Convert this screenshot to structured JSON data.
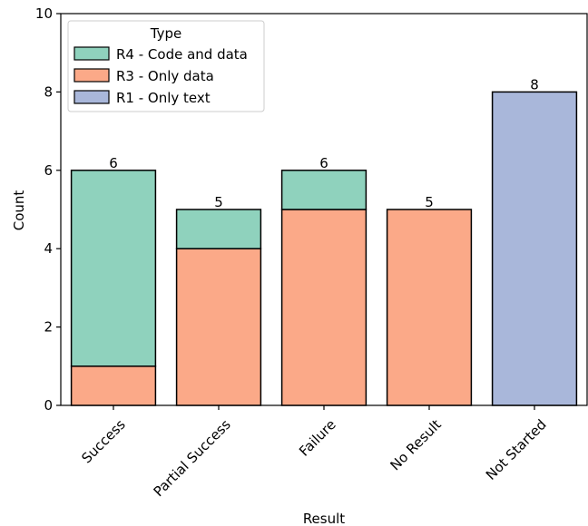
{
  "chart_data": {
    "type": "bar",
    "stacked": true,
    "categories": [
      "Success",
      "Partial Success",
      "Failure",
      "No Result",
      "Not Started"
    ],
    "series": [
      {
        "name": "R1 - Only text",
        "values": [
          0,
          0,
          0,
          0,
          8
        ],
        "color": "#a9b7da"
      },
      {
        "name": "R3 - Only data",
        "values": [
          1,
          4,
          5,
          5,
          0
        ],
        "color": "#fba988"
      },
      {
        "name": "R4 - Code and data",
        "values": [
          5,
          1,
          1,
          0,
          0
        ],
        "color": "#8fd2bd"
      }
    ],
    "totals": [
      6,
      5,
      6,
      5,
      8
    ],
    "xlabel": "Result",
    "ylabel": "Count",
    "ylim": [
      0,
      10
    ],
    "yticks": [
      0,
      2,
      4,
      6,
      8,
      10
    ],
    "legend": {
      "title": "Type",
      "position": "top-left",
      "order": [
        "R4 - Code and data",
        "R3 - Only data",
        "R1 - Only text"
      ]
    }
  }
}
